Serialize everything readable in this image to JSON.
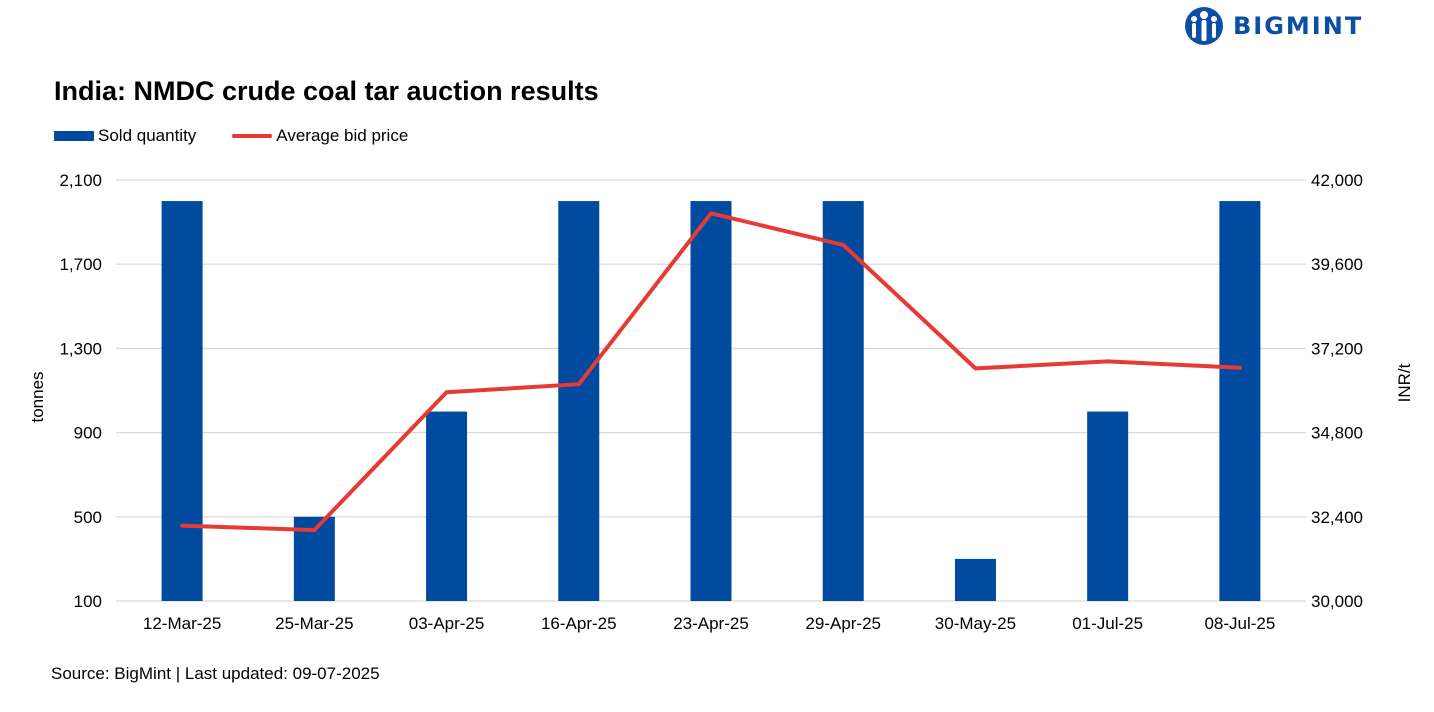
{
  "brand": {
    "name": "BIGMINT",
    "color": "#0a4fa3"
  },
  "footer": {
    "source": "Source: BigMint | Last updated: 09-07-2025"
  },
  "chart_data": {
    "type": "bar+line",
    "title": "India: NMDC crude coal tar auction results",
    "categories": [
      "12-Mar-25",
      "25-Mar-25",
      "03-Apr-25",
      "16-Apr-25",
      "23-Apr-25",
      "29-Apr-25",
      "30-May-25",
      "01-Jul-25",
      "08-Jul-25"
    ],
    "series": [
      {
        "name": "Sold quantity",
        "type": "bar",
        "axis": "left",
        "color": "#004aa0",
        "values": [
          2000,
          500,
          1000,
          2000,
          2000,
          2000,
          300,
          1000,
          2000
        ]
      },
      {
        "name": "Average bid price",
        "type": "line",
        "axis": "right",
        "color": "#e63a33",
        "values": [
          32150,
          32020,
          35950,
          36180,
          41050,
          40150,
          36630,
          36830,
          36650
        ]
      }
    ],
    "left_axis": {
      "label": "tonnes",
      "min": 100,
      "max": 2100,
      "ticks": [
        100,
        500,
        900,
        1300,
        1700,
        2100
      ]
    },
    "right_axis": {
      "label": "INR/t",
      "min": 30000,
      "max": 42000,
      "ticks": [
        30000,
        32400,
        34800,
        37200,
        39600,
        42000
      ]
    },
    "grid": true,
    "legend_position": "top-left"
  }
}
